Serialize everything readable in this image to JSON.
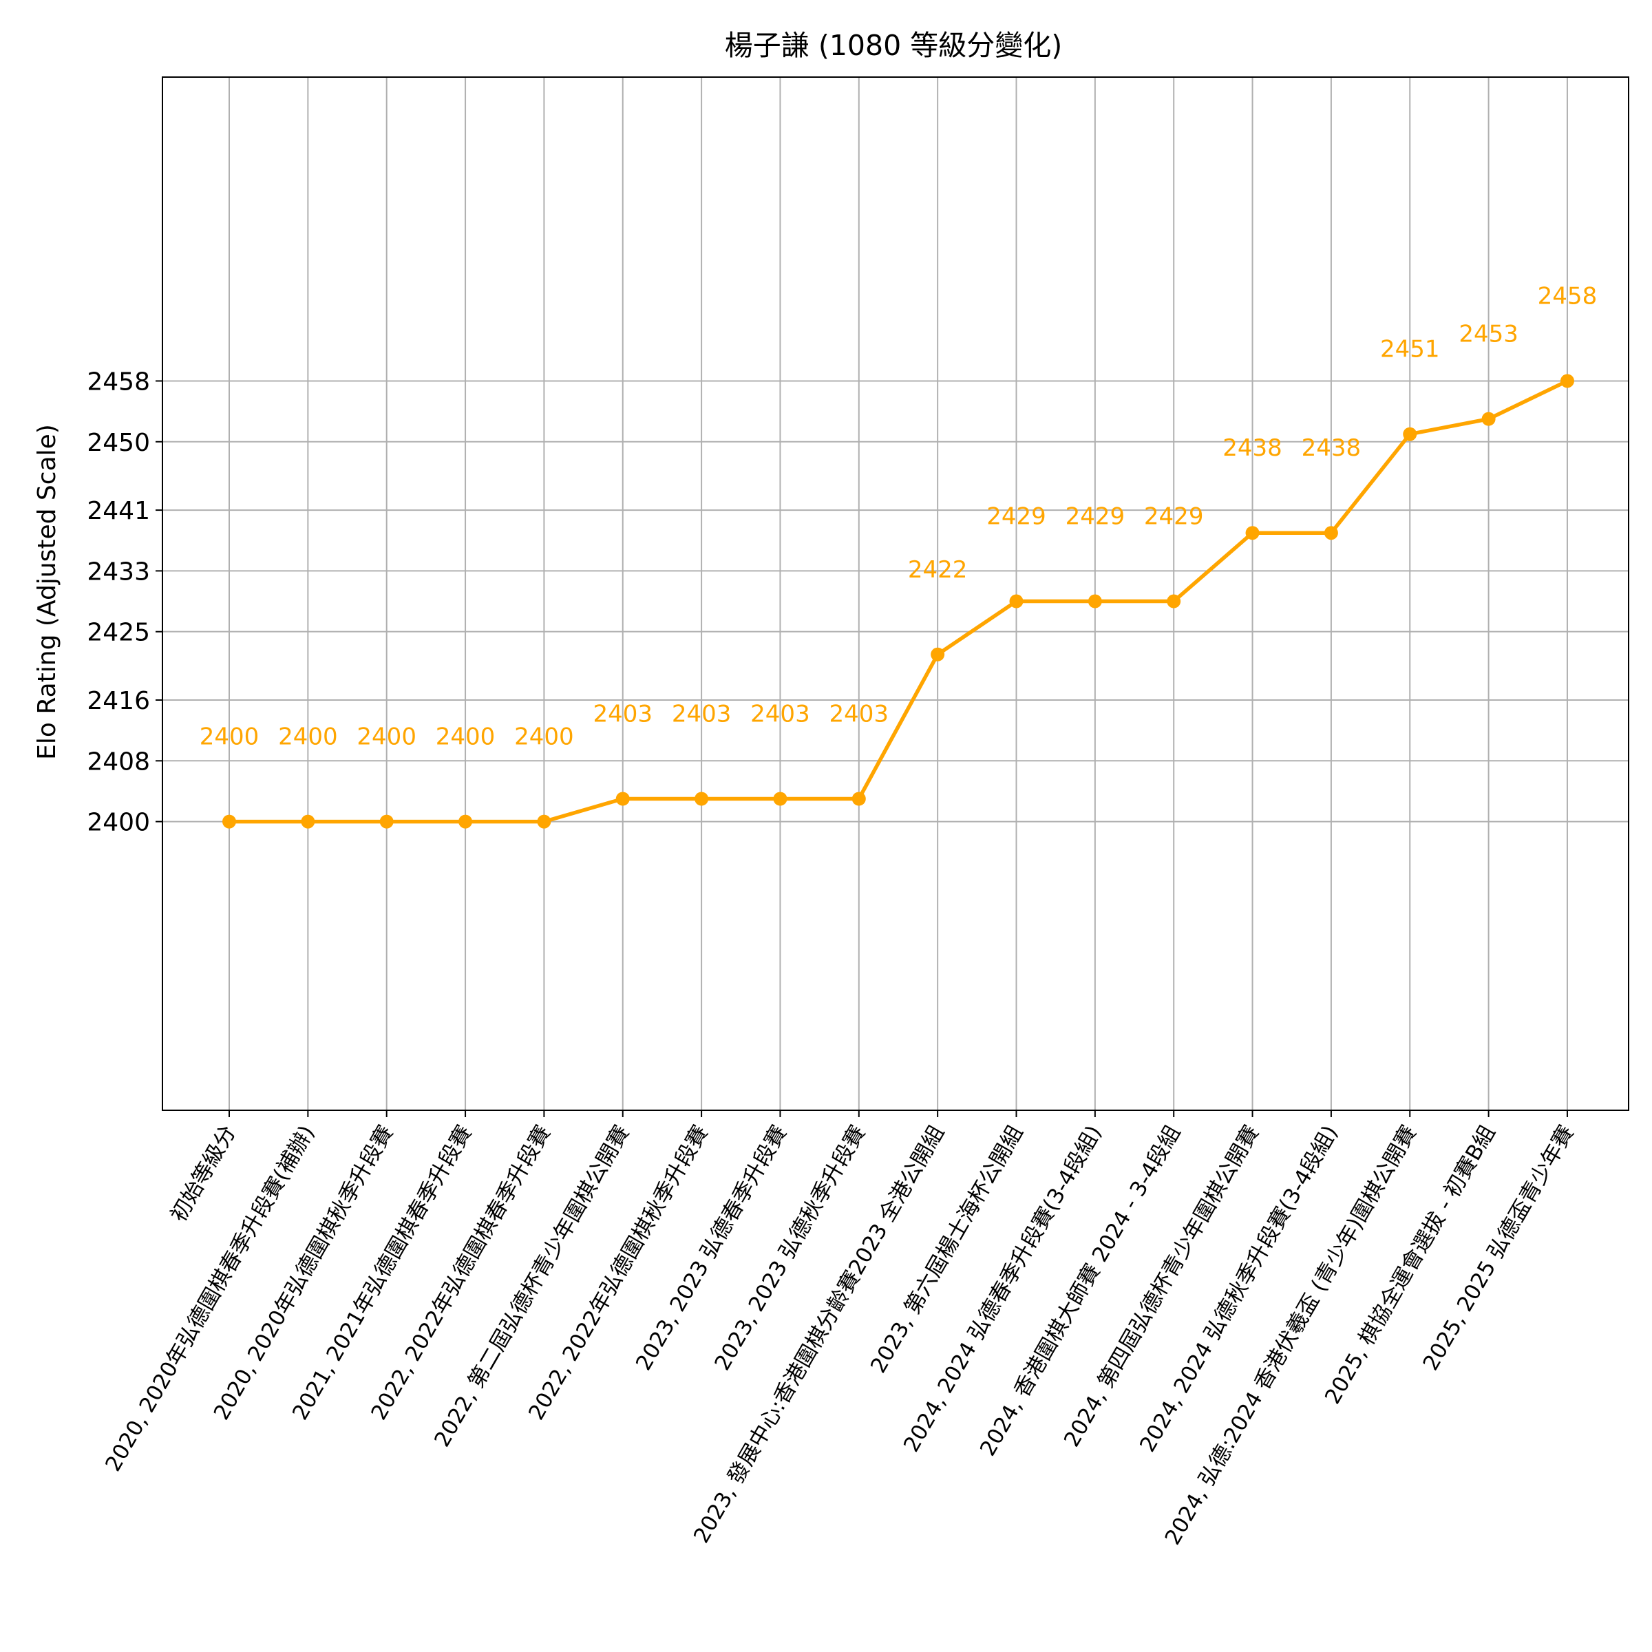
{
  "chart_data": {
    "type": "line",
    "title": "楊子謙 (1080 等級分變化)",
    "xlabel": "",
    "ylabel": "Elo Rating (Adjusted Scale)",
    "y_tick_labels": [
      "2400",
      "2408",
      "2416",
      "2425",
      "2433",
      "2441",
      "2450",
      "2458"
    ],
    "ylim": [
      2362,
      2498
    ],
    "grid": true,
    "series_color": "#ffa500",
    "categories": [
      "初始等級分",
      "2020, 2020年弘德圍棋春季升段賽(補辦)",
      "2020, 2020年弘德圍棋秋季升段賽",
      "2021, 2021年弘德圍棋春季升段賽",
      "2022, 2022年弘德圍棋春季升段賽",
      "2022, 第二屆弘德杯青少年圍棋公開賽",
      "2022, 2022年弘德圍棋秋季升段賽",
      "2023, 2023 弘德春季升段賽",
      "2023, 2023 弘德秋季升段賽",
      "2023, 發展中心:香港圍棋分齡賽2023 全港公開組",
      "2023, 第六屆楊士海杯公開組",
      "2024, 2024 弘德春季升段賽(3-4段組)",
      "2024, 香港圍棋大師賽 2024 - 3-4段組",
      "2024, 第四屆弘德杯青少年圍棋公開賽",
      "2024, 2024 弘德秋季升段賽(3-4段組)",
      "2024, 弘德:2024 香港伏羲盃 (青少年)圍棋公開賽",
      "2025, 棋協全運會選拔 - 初賽B組",
      "2025, 2025 弘德盃青少年賽"
    ],
    "values": [
      2400,
      2400,
      2400,
      2400,
      2400,
      2403,
      2403,
      2403,
      2403,
      2422,
      2429,
      2429,
      2429,
      2438,
      2438,
      2451,
      2453,
      2458
    ],
    "data_labels": [
      "2400",
      "2400",
      "2400",
      "2400",
      "2400",
      "2403",
      "2403",
      "2403",
      "2403",
      "2422",
      "2429",
      "2429",
      "2429",
      "2438",
      "2438",
      "2451",
      "2453",
      "2458"
    ]
  }
}
